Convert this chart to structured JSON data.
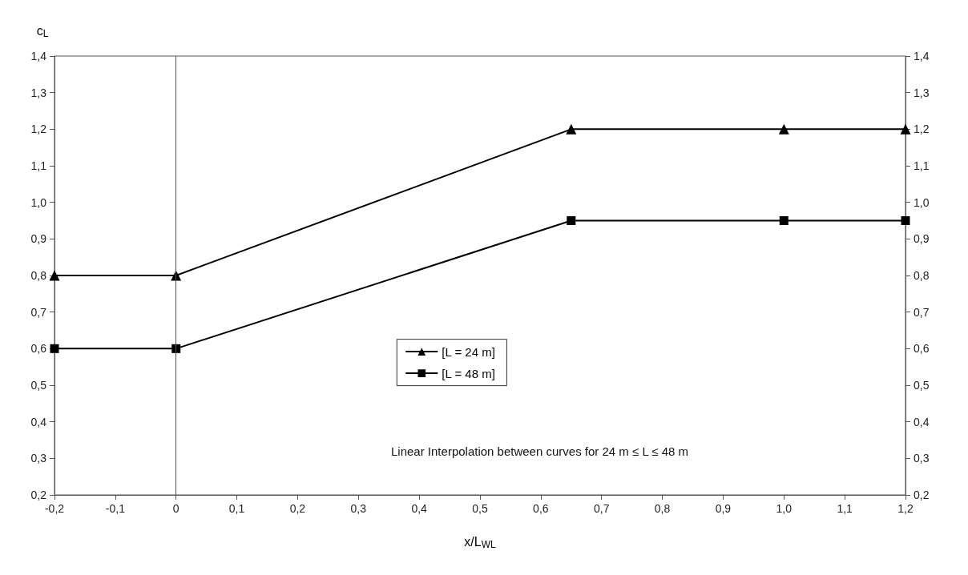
{
  "chart_data": {
    "type": "line",
    "xlabel": "x/L$_{WL}$",
    "ylabel": "c$_{L}$",
    "x": [
      -0.2,
      0,
      0.65,
      1.0,
      1.2
    ],
    "series": [
      {
        "name": "[L = 24 m]",
        "color": "#000000",
        "marker": "triangle",
        "values": [
          0.8,
          0.8,
          1.2,
          1.2,
          1.2
        ]
      },
      {
        "name": "[L = 48 m]",
        "color": "#000000",
        "marker": "square",
        "values": [
          0.6,
          0.6,
          0.95,
          0.95,
          0.95
        ]
      }
    ],
    "xlim": [
      -0.2,
      1.2
    ],
    "xticks": [
      {
        "value": -0.2,
        "label": "-0,2"
      },
      {
        "value": -0.1,
        "label": "-0,1"
      },
      0,
      {
        "value": 0.1,
        "label": "0,1"
      },
      {
        "value": 0.2,
        "label": "0,2"
      },
      {
        "value": 0.3,
        "label": "0,3"
      },
      {
        "value": 0.4,
        "label": "0,4"
      },
      {
        "value": 0.5,
        "label": "0,5"
      },
      {
        "value": 0.6,
        "label": "0,6"
      },
      {
        "value": 0.7,
        "label": "0,7"
      },
      {
        "value": 0.8,
        "label": "0,8"
      },
      {
        "value": 0.9,
        "label": "0,9"
      },
      {
        "value": 1.0,
        "label": "1,0"
      },
      {
        "value": 1.1,
        "label": "1,1"
      },
      {
        "value": 1.2,
        "label": "1,2"
      }
    ],
    "ylim": [
      0.2,
      1.4
    ],
    "yticks": [
      {
        "value": 0.2,
        "label": "0,2"
      },
      {
        "value": 0.3,
        "label": "0,3"
      },
      {
        "value": 0.4,
        "label": "0,4"
      },
      {
        "value": 0.5,
        "label": "0,5"
      },
      {
        "value": 0.6,
        "label": "0,6"
      },
      {
        "value": 0.7,
        "label": "0,7"
      },
      {
        "value": 0.8,
        "label": "0,8"
      },
      {
        "value": 0.9,
        "label": "0,9"
      },
      {
        "value": 1.0,
        "label": "1,0"
      },
      {
        "value": 1.1,
        "label": "1,1"
      },
      {
        "value": 1.2,
        "label": "1,2"
      },
      {
        "value": 1.3,
        "label": "1,3"
      },
      {
        "value": 1.4,
        "label": "1,4"
      }
    ],
    "y2lim": [
      0.2,
      1.4
    ],
    "y2ticks": [
      {
        "value": 0.2,
        "label": "0,2"
      },
      {
        "value": 0.3,
        "label": "0,3"
      },
      {
        "value": 0.4,
        "label": "0,4"
      },
      {
        "value": 0.5,
        "label": "0,5"
      },
      {
        "value": 0.6,
        "label": "0,6"
      },
      {
        "value": 0.7,
        "label": "0,7"
      },
      {
        "value": 0.8,
        "label": "0,8"
      },
      {
        "value": 0.9,
        "label": "0,9"
      },
      {
        "value": 1.0,
        "label": "1,0"
      },
      {
        "value": 1.1,
        "label": "1,1"
      },
      {
        "value": 1.2,
        "label": "1,2"
      },
      {
        "value": 1.3,
        "label": "1,3"
      },
      {
        "value": 1.4,
        "label": "1,4"
      }
    ],
    "ref_lines": [
      {
        "axis": "x",
        "value": 0
      }
    ],
    "grid": false,
    "legend": "center",
    "annotations": [
      "Linear Interpolation between curves for 24 m ≤ L ≤ 48 m"
    ]
  }
}
